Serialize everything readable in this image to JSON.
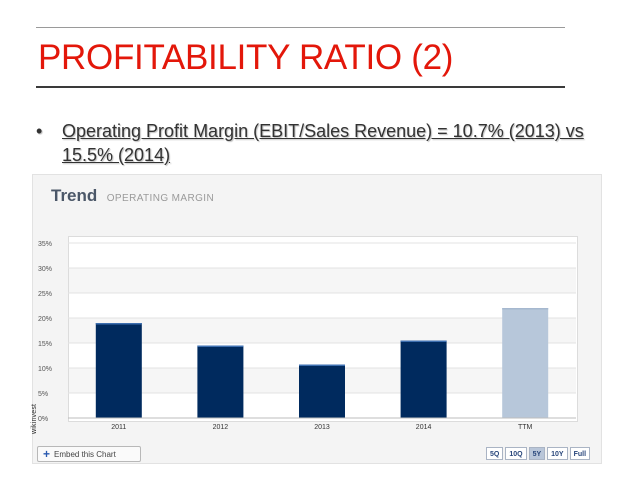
{
  "slide": {
    "title": "PROFITABILITY RATIO (2)",
    "bullet_marker": "•",
    "bullet_text": "Operating Profit Margin (EBIT/Sales Revenue) = 10.7% (2013) vs 15.5% (2014)"
  },
  "panel": {
    "title": "Trend",
    "subtitle": "OPERATING MARGIN",
    "side_brand": "wikinvest",
    "embed_label": "Embed this Chart",
    "embed_icon": "plus-icon",
    "range_buttons": [
      {
        "label": "5Q",
        "active": false
      },
      {
        "label": "10Q",
        "active": false
      },
      {
        "label": "5Y",
        "active": true
      },
      {
        "label": "10Y",
        "active": false
      },
      {
        "label": "Full",
        "active": false
      }
    ]
  },
  "colors": {
    "title_red": "#e3170a",
    "bar_navy": "#002a5e",
    "bar_ttm": "#b7c7da"
  },
  "chart_data": {
    "type": "bar",
    "title": "Trend",
    "subtitle": "OPERATING MARGIN",
    "categories": [
      "2011",
      "2012",
      "2013",
      "2014",
      "TTM"
    ],
    "values": [
      19.0,
      14.5,
      10.7,
      15.5,
      22.0
    ],
    "ylim": [
      0,
      35
    ],
    "yticks": [
      "0%",
      "5%",
      "10%",
      "15%",
      "20%",
      "25%",
      "30%",
      "35%"
    ],
    "ytick_values": [
      0,
      5,
      10,
      15,
      20,
      25,
      30,
      35
    ],
    "xlabel": "",
    "ylabel": "",
    "grid": true,
    "highlight_last": true
  }
}
